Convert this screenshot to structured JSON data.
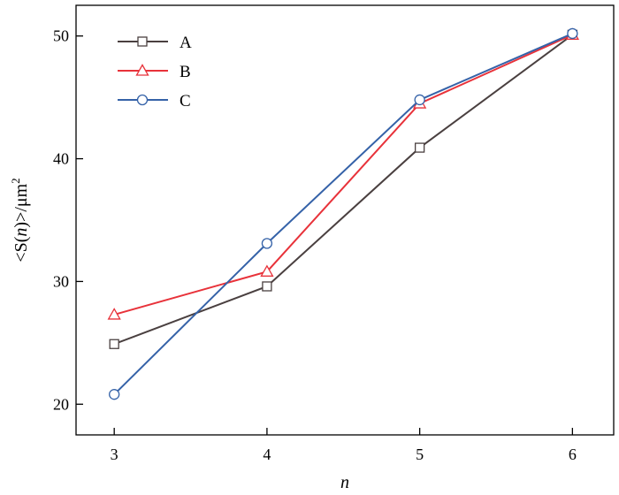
{
  "chart_data": {
    "type": "line",
    "title": "",
    "xlabel": "n",
    "ylabel": "<S(n)>/μm²",
    "ylabel_parts": {
      "prefix": "<S(",
      "var": "n",
      "suffix": ")>/μm",
      "sup": "2"
    },
    "x": [
      3,
      4,
      5,
      6
    ],
    "x_ticks": [
      "3",
      "4",
      "5",
      "6"
    ],
    "y_ticks": [
      "20",
      "30",
      "40",
      "50"
    ],
    "y_tick_values": [
      20,
      30,
      40,
      50
    ],
    "xlim": [
      2.75,
      6.27
    ],
    "ylim": [
      17.5,
      52.5
    ],
    "grid": false,
    "legend_position": "top-left",
    "series": [
      {
        "name": "A",
        "values": [
          24.9,
          29.6,
          40.9,
          50.1
        ],
        "color": "#4a4040",
        "marker": "square"
      },
      {
        "name": "B",
        "values": [
          27.3,
          30.8,
          44.5,
          50.1
        ],
        "color": "#e8323a",
        "marker": "triangle"
      },
      {
        "name": "C",
        "values": [
          20.8,
          33.1,
          44.8,
          50.2
        ],
        "color": "#3562a8",
        "marker": "circle"
      }
    ]
  }
}
